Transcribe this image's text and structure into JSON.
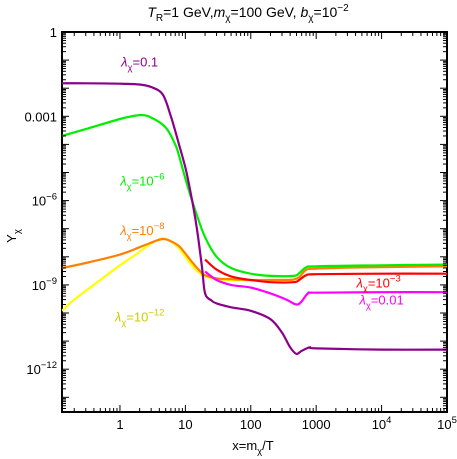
{
  "chart_data": {
    "type": "line",
    "title": {
      "parts": [
        {
          "text": "T",
          "style": "italic"
        },
        {
          "text": "R",
          "style": "sub"
        },
        {
          "text": "=1 GeV,"
        },
        {
          "text": "m",
          "style": "italic"
        },
        {
          "text": "χ",
          "style": "sub"
        },
        {
          "text": "=100 GeV, "
        },
        {
          "text": "b",
          "style": "italic"
        },
        {
          "text": "χ",
          "style": "sub"
        },
        {
          "text": "=10"
        },
        {
          "text": "−2",
          "style": "sup"
        }
      ]
    },
    "xlabel": "x=m",
    "xlabel_sub": "χ",
    "xlabel_tail": "/T",
    "ylabel": "Y",
    "ylabel_sub": "χ",
    "x_scale": "log",
    "y_scale": "log",
    "xlim": [
      0.13,
      100000
    ],
    "ylim": [
      3e-14,
      1
    ],
    "grid": false,
    "x_ticks": [
      {
        "value": 1,
        "label": "1"
      },
      {
        "value": 10,
        "label": "10"
      },
      {
        "value": 100,
        "label": "100"
      },
      {
        "value": 1000,
        "label": "1000"
      },
      {
        "value": 10000,
        "label": "10",
        "sup": "4"
      },
      {
        "value": 100000,
        "label": "10",
        "sup": "5"
      }
    ],
    "y_ticks": [
      {
        "value": 1,
        "label": "1"
      },
      {
        "value": 0.001,
        "label": "0.001"
      },
      {
        "value": 1e-06,
        "label": "10",
        "sup": "−6"
      },
      {
        "value": 1e-09,
        "label": "10",
        "sup": "−9"
      },
      {
        "value": 1e-12,
        "label": "10",
        "sup": "−12"
      }
    ],
    "series": [
      {
        "color": "#ffff00",
        "points": [
          [
            0.13,
            1.2e-10
          ],
          [
            0.2,
            3e-10
          ],
          [
            0.5,
            1.5e-09
          ],
          [
            1,
            5e-09
          ],
          [
            2,
            1.5e-08
          ],
          [
            3,
            3e-08
          ],
          [
            4.5,
            4.5e-08
          ],
          [
            6,
            3.5e-08
          ],
          [
            8,
            2e-08
          ],
          [
            10,
            1e-08
          ],
          [
            13,
            4.5e-09
          ],
          [
            17,
            2.5e-09
          ],
          [
            20,
            2e-09
          ],
          [
            30,
            1.6e-09
          ],
          [
            50,
            1.5e-09
          ],
          [
            100,
            1.5e-09
          ],
          [
            300,
            1.5e-09
          ],
          [
            450,
            1.55e-09
          ],
          [
            550,
            1.9e-09
          ],
          [
            700,
            3.5e-09
          ],
          [
            1000,
            3.9e-09
          ],
          [
            5000,
            4.3e-09
          ],
          [
            100000,
            4.7e-09
          ]
        ]
      },
      {
        "color": "#ff8000",
        "points": [
          [
            0.13,
            4e-09
          ],
          [
            0.3,
            6e-09
          ],
          [
            1,
            1.2e-08
          ],
          [
            2,
            2.2e-08
          ],
          [
            3,
            3.2e-08
          ],
          [
            4.5,
            4.3e-08
          ],
          [
            6,
            3.6e-08
          ],
          [
            8,
            2.4e-08
          ],
          [
            10,
            1.3e-08
          ],
          [
            13,
            6e-09
          ],
          [
            17,
            3e-09
          ],
          [
            20,
            2.2e-09
          ],
          [
            30,
            1.7e-09
          ],
          [
            50,
            1.6e-09
          ],
          [
            100,
            1.5e-09
          ],
          [
            300,
            1.5e-09
          ],
          [
            450,
            1.55e-09
          ],
          [
            550,
            1.9e-09
          ],
          [
            700,
            3.4e-09
          ],
          [
            1000,
            3.8e-09
          ],
          [
            5000,
            4.2e-09
          ],
          [
            100000,
            4.6e-09
          ]
        ]
      },
      {
        "color": "#00ee00",
        "points": [
          [
            0.13,
            0.0002
          ],
          [
            0.3,
            0.00035
          ],
          [
            1,
            0.0008
          ],
          [
            2,
            0.0011
          ],
          [
            3,
            0.0009
          ],
          [
            5,
            0.0004
          ],
          [
            7,
            0.0001
          ],
          [
            8,
            4e-05
          ],
          [
            10,
            6e-06
          ],
          [
            12,
            1.5e-06
          ],
          [
            15,
            3e-07
          ],
          [
            20,
            5e-08
          ],
          [
            30,
            1e-08
          ],
          [
            50,
            4e-09
          ],
          [
            100,
            2.5e-09
          ],
          [
            200,
            2.1e-09
          ],
          [
            450,
            2.1e-09
          ],
          [
            550,
            2.6e-09
          ],
          [
            700,
            4.2e-09
          ],
          [
            1000,
            4.6e-09
          ],
          [
            10000,
            5e-09
          ],
          [
            100000,
            5.3e-09
          ]
        ]
      },
      {
        "color": "#ff0000",
        "points": [
          [
            20,
            8e-09
          ],
          [
            30,
            3.5e-09
          ],
          [
            50,
            2e-09
          ],
          [
            100,
            1.5e-09
          ],
          [
            200,
            1.25e-09
          ],
          [
            450,
            1.25e-09
          ],
          [
            550,
            1.5e-09
          ],
          [
            700,
            2.2e-09
          ],
          [
            1000,
            2.4e-09
          ],
          [
            10000,
            2.5e-09
          ],
          [
            100000,
            2.5e-09
          ]
        ]
      },
      {
        "color": "#ff00ff",
        "points": [
          [
            20,
            3e-09
          ],
          [
            30,
            1.5e-09
          ],
          [
            50,
            1e-09
          ],
          [
            100,
            8e-10
          ],
          [
            200,
            5e-10
          ],
          [
            350,
            3e-10
          ],
          [
            500,
            2e-10
          ],
          [
            600,
            2.6e-10
          ],
          [
            750,
            5e-10
          ],
          [
            1000,
            5.3e-10
          ],
          [
            10000,
            5.5e-10
          ],
          [
            100000,
            5.5e-10
          ]
        ]
      },
      {
        "color": "#8b008b",
        "points": [
          [
            0.13,
            0.015
          ],
          [
            0.3,
            0.015
          ],
          [
            1,
            0.0145
          ],
          [
            2,
            0.0135
          ],
          [
            3,
            0.011
          ],
          [
            4.5,
            0.006
          ],
          [
            6,
            0.001
          ],
          [
            8,
            0.0001
          ],
          [
            10,
            1.5e-05
          ],
          [
            12,
            2e-06
          ],
          [
            15,
            1e-07
          ],
          [
            18,
            4e-09
          ],
          [
            20,
            5e-10
          ],
          [
            25,
            2.8e-10
          ],
          [
            30,
            2.2e-10
          ],
          [
            50,
            1.6e-10
          ],
          [
            100,
            1.2e-10
          ],
          [
            200,
            6e-11
          ],
          [
            300,
            2e-11
          ],
          [
            400,
            6e-12
          ],
          [
            500,
            3.5e-12
          ],
          [
            600,
            4.5e-12
          ],
          [
            800,
            6e-12
          ],
          [
            1000,
            5.5e-12
          ],
          [
            10000,
            5e-12
          ],
          [
            100000,
            5e-12
          ]
        ]
      }
    ],
    "annotations": [
      {
        "prefix": "λ",
        "sub": "χ",
        "text": "=0.1",
        "color": "#8b008b",
        "x": 2,
        "y": 0.06
      },
      {
        "prefix": "λ",
        "sub": "χ",
        "text": "=10",
        "sup": "−6",
        "color": "#00ee00",
        "x": 2.2,
        "y": 3.5e-06
      },
      {
        "prefix": "λ",
        "sub": "χ",
        "text": "=10",
        "sup": "−8",
        "color": "#ff8000",
        "x": 2.2,
        "y": 6e-08
      },
      {
        "prefix": "λ",
        "sub": "χ",
        "text": "=10",
        "sup": "−12",
        "color": "#cccc00",
        "x": 2,
        "y": 5e-11
      },
      {
        "prefix": "λ",
        "sub": "χ",
        "text": "=10",
        "sup": "−3",
        "color": "#ff0000",
        "x": 9000,
        "y": 8e-10
      },
      {
        "prefix": "λ",
        "sub": "χ",
        "text": "=0.01",
        "color": "#ff00ff",
        "x": 10000,
        "y": 2e-10
      }
    ]
  }
}
